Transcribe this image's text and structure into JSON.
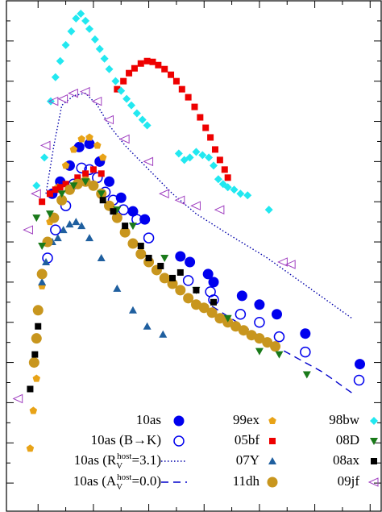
{
  "chart_data": {
    "type": "scatter",
    "xlim": [
      0,
      474
    ],
    "ylim": [
      635,
      0
    ],
    "xticks": [
      40,
      75,
      110,
      145,
      180,
      215,
      250,
      285,
      320,
      355,
      390,
      425,
      460
    ],
    "yticks": [
      25,
      50,
      75,
      100,
      125,
      150,
      175,
      200,
      225,
      250,
      275,
      300,
      325,
      350,
      375,
      400,
      425,
      450,
      475,
      500,
      525,
      550,
      575,
      600
    ],
    "series": [
      {
        "name": "10as",
        "color": "#0000ee",
        "marker": "circle",
        "x": [
          58,
          68,
          80,
          92,
          105,
          118,
          130,
          145,
          160,
          175,
          220,
          232,
          255,
          262,
          298,
          320,
          342,
          378,
          447
        ],
        "y": [
          240,
          225,
          205,
          182,
          178,
          200,
          225,
          245,
          262,
          272,
          318,
          325,
          340,
          350,
          367,
          378,
          390,
          414,
          452
        ]
      },
      {
        "name": "10as (B→K)",
        "color": "#0000ee",
        "marker": "circle-open",
        "x": [
          52,
          62,
          75,
          85,
          95,
          105,
          115,
          125,
          135,
          148,
          165,
          180,
          230,
          258,
          262,
          296,
          320,
          345,
          378,
          446
        ],
        "y": [
          320,
          285,
          255,
          228,
          208,
          210,
          220,
          238,
          248,
          260,
          272,
          295,
          348,
          362,
          372,
          390,
          400,
          418,
          437,
          472
        ]
      },
      {
        "name": "10as (R_V^host=3.1)",
        "color": "#0000aa",
        "line": "dotted",
        "x": [
          50,
          60,
          70,
          85,
          100,
          115,
          130,
          150,
          180,
          210,
          240,
          280,
          330,
          380,
          437
        ],
        "y": [
          240,
          180,
          130,
          118,
          115,
          130,
          155,
          180,
          210,
          240,
          265,
          290,
          320,
          355,
          395
        ]
      },
      {
        "name": "10as (A_V^host=0.0)",
        "color": "#0000cc",
        "line": "dashed",
        "x": [
          260,
          300,
          350,
          400,
          440
        ],
        "y": [
          380,
          405,
          435,
          462,
          490
        ]
      },
      {
        "name": "99ex",
        "color": "#e8a317",
        "marker": "pentagon",
        "x": [
          30,
          34,
          38,
          45,
          55,
          65,
          75,
          85,
          95,
          105,
          115,
          122
        ],
        "y": [
          557,
          510,
          470,
          355,
          275,
          232,
          205,
          185,
          172,
          170,
          180,
          195
        ]
      },
      {
        "name": "05bf",
        "color": "#ee0000",
        "marker": "square",
        "x": [
          45,
          55,
          62,
          68,
          75,
          90,
          100,
          110,
          120,
          140,
          148,
          155,
          162,
          170,
          178,
          185,
          192,
          200,
          208,
          215,
          222,
          230,
          238,
          245,
          252,
          258,
          264,
          270,
          276,
          280
        ],
        "y": [
          250,
          240,
          235,
          232,
          228,
          220,
          215,
          210,
          215,
          110,
          100,
          90,
          84,
          78,
          75,
          76,
          80,
          85,
          92,
          100,
          110,
          120,
          132,
          145,
          158,
          170,
          185,
          198,
          210,
          220
        ]
      },
      {
        "name": "07Y",
        "color": "#1f5f9f",
        "marker": "triangle-up",
        "x": [
          45,
          50,
          58,
          65,
          72,
          80,
          88,
          95,
          105,
          120,
          140,
          160,
          178,
          198
        ],
        "y": [
          350,
          325,
          300,
          295,
          285,
          278,
          275,
          280,
          295,
          320,
          358,
          385,
          405,
          415
        ]
      },
      {
        "name": "11dh",
        "color": "#c8961e",
        "marker": "circle",
        "x": [
          35,
          38,
          40,
          45,
          52,
          60,
          70,
          80,
          90,
          100,
          110,
          120,
          130,
          140,
          150,
          160,
          170,
          180,
          190,
          200,
          210,
          220,
          230,
          240,
          250,
          260,
          270,
          280,
          290,
          300,
          310,
          320,
          330,
          340
        ],
        "y": [
          450,
          420,
          385,
          340,
          300,
          270,
          248,
          235,
          228,
          225,
          230,
          240,
          255,
          270,
          288,
          302,
          315,
          325,
          335,
          345,
          352,
          360,
          370,
          378,
          382,
          388,
          395,
          400,
          405,
          410,
          416,
          420,
          425,
          430
        ]
      },
      {
        "name": "98bw",
        "color": "#22e8f0",
        "marker": "diamond",
        "x": [
          38,
          48,
          56,
          62,
          68,
          75,
          82,
          88,
          94,
          100,
          105,
          112,
          118,
          124,
          130,
          138,
          145,
          152,
          158,
          165,
          172,
          178,
          218,
          225,
          232,
          240,
          248,
          256,
          262,
          268,
          274,
          280,
          288,
          296,
          305,
          332
        ],
        "y": [
          230,
          195,
          125,
          95,
          75,
          55,
          38,
          22,
          16,
          25,
          35,
          48,
          60,
          72,
          85,
          100,
          112,
          122,
          130,
          140,
          148,
          155,
          190,
          198,
          195,
          188,
          192,
          195,
          205,
          222,
          228,
          232,
          235,
          240,
          242,
          260
        ]
      },
      {
        "name": "08D",
        "color": "#1a7a1a",
        "marker": "triangle-down",
        "x": [
          38,
          45,
          55,
          70,
          85,
          100,
          120,
          140,
          160,
          200,
          240,
          280,
          320,
          345,
          380
        ],
        "y": [
          270,
          305,
          265,
          240,
          230,
          225,
          240,
          260,
          280,
          320,
          360,
          395,
          436,
          440,
          465
        ]
      },
      {
        "name": "08ax",
        "color": "#000000",
        "marker": "square",
        "x": [
          30,
          36,
          40,
          122,
          135,
          150,
          170,
          180,
          195,
          210,
          220,
          240,
          262
        ],
        "y": [
          483,
          440,
          405,
          248,
          262,
          280,
          305,
          320,
          330,
          345,
          338,
          360,
          375
        ]
      },
      {
        "name": "09jf",
        "color": "#a040c0",
        "marker": "triangle-left-open",
        "x": [
          15,
          28,
          38,
          50,
          60,
          72,
          85,
          100,
          115,
          130,
          150,
          180,
          200,
          220,
          240,
          270,
          350,
          360
        ],
        "y": [
          495,
          285,
          240,
          180,
          125,
          122,
          115,
          113,
          125,
          148,
          172,
          200,
          240,
          248,
          255,
          260,
          325,
          328
        ]
      }
    ]
  }
}
